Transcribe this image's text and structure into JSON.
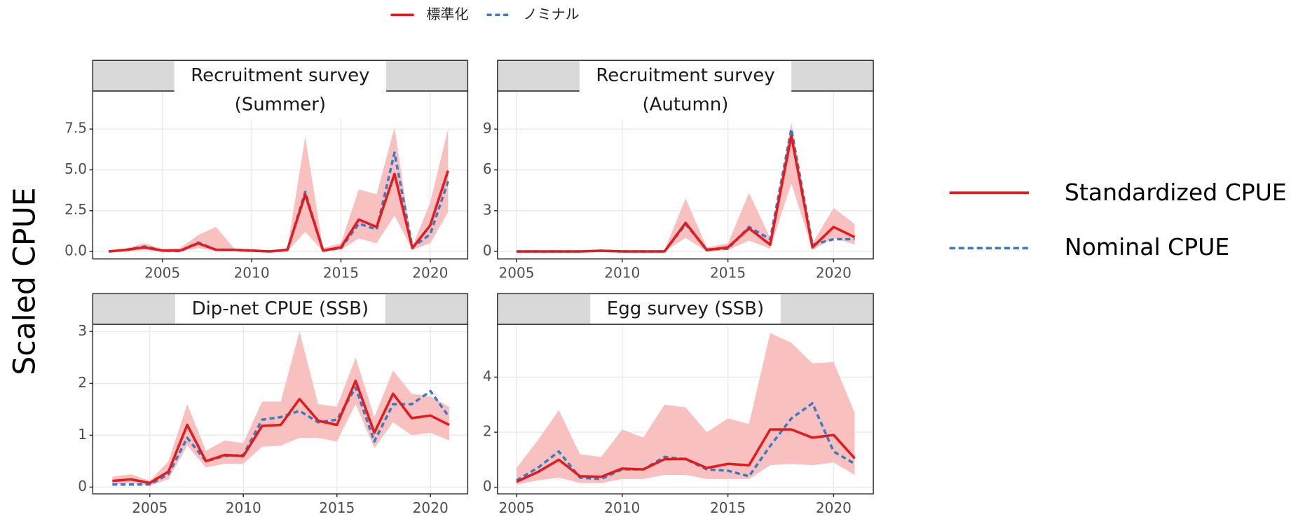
{
  "y_label": "Scaled CPUE",
  "right_legend": [
    "Standardized CPUE",
    "Nominal CPUE"
  ],
  "chart_data": [
    {
      "type": "line",
      "title": [
        "Recruitment survey",
        "(Summer)"
      ],
      "x": [
        2002,
        2003,
        2004,
        2005,
        2006,
        2007,
        2008,
        2009,
        2010,
        2011,
        2012,
        2013,
        2014,
        2015,
        2016,
        2017,
        2018,
        2019,
        2020,
        2021
      ],
      "series": [
        {
          "name": "標準化",
          "color": "#e41a1c",
          "dash": false,
          "values": [
            0,
            0.1,
            0.25,
            0.05,
            0.05,
            0.5,
            0.1,
            0.1,
            0.05,
            0,
            0.1,
            3.5,
            0.05,
            0.25,
            1.95,
            1.5,
            4.75,
            0.2,
            1.6,
            4.95
          ]
        },
        {
          "name": "ノミナル",
          "color": "#3c7bc4",
          "dash": true,
          "values": [
            0,
            0.1,
            0.3,
            0.05,
            0.02,
            0.55,
            0.1,
            0.1,
            0.05,
            0,
            0.08,
            3.65,
            0.05,
            0.2,
            1.7,
            1.35,
            6.05,
            0.25,
            1.05,
            4.3
          ]
        }
      ],
      "band": {
        "color": "#f9c0c0",
        "lower": [
          0,
          0,
          0.1,
          0,
          0,
          0.2,
          0.05,
          0.05,
          0,
          0,
          0,
          1.2,
          0,
          0.1,
          0.8,
          0.5,
          2.2,
          0.1,
          0.5,
          2.4
        ],
        "upper": [
          0.05,
          0.2,
          0.5,
          0.15,
          0.2,
          1.0,
          1.5,
          0.2,
          0.1,
          0.05,
          0.2,
          7.0,
          0.2,
          0.5,
          3.8,
          3.5,
          7.6,
          0.3,
          3.0,
          7.5
        ]
      },
      "xlim": [
        2001.1,
        2022.1
      ],
      "xticks": [
        2005,
        2010,
        2015,
        2020
      ],
      "ylim": [
        -0.46,
        9.83
      ],
      "yticks": [
        {
          "value": 0,
          "label": "0.0"
        },
        2.5,
        {
          "value": 5,
          "label": "5.0"
        },
        7.5
      ],
      "grid": true
    },
    {
      "type": "line",
      "title": [
        "Recruitment survey",
        "(Autumn)"
      ],
      "x": [
        2005,
        2006,
        2007,
        2008,
        2009,
        2010,
        2011,
        2012,
        2013,
        2014,
        2015,
        2016,
        2017,
        2018,
        2019,
        2020,
        2021
      ],
      "series": [
        {
          "name": "標準化",
          "color": "#e41a1c",
          "dash": false,
          "values": [
            0,
            0,
            0,
            0,
            0.05,
            0,
            0,
            0,
            2.1,
            0.1,
            0.3,
            1.7,
            0.5,
            8.5,
            0.3,
            1.8,
            1.05
          ]
        },
        {
          "name": "ノミナル",
          "color": "#3c7bc4",
          "dash": true,
          "values": [
            0,
            0,
            0,
            0,
            0.05,
            0,
            0,
            0,
            2.0,
            0.15,
            0.2,
            1.8,
            0.9,
            9.0,
            0.5,
            0.9,
            0.9
          ]
        }
      ],
      "band": {
        "color": "#f9c0c0",
        "lower": [
          0,
          0,
          0,
          0,
          0,
          0,
          0,
          0,
          1.0,
          0,
          0.1,
          0.8,
          0.2,
          5.0,
          0.1,
          1.0,
          0.5
        ],
        "upper": [
          0.05,
          0.05,
          0.05,
          0.05,
          0.1,
          0.05,
          0.05,
          0.1,
          3.9,
          0.3,
          0.6,
          4.3,
          1.0,
          9.5,
          0.6,
          3.2,
          2.0
        ]
      },
      "xlim": [
        2004.1,
        2021.88
      ],
      "xticks": [
        2005,
        2010,
        2015,
        2020
      ],
      "ylim": [
        -0.55,
        11.8
      ],
      "yticks": [
        0,
        3,
        6,
        9
      ],
      "grid": true
    },
    {
      "type": "line",
      "title": [
        "Dip-net CPUE (SSB)"
      ],
      "x": [
        2003,
        2004,
        2005,
        2006,
        2007,
        2008,
        2009,
        2010,
        2011,
        2012,
        2013,
        2014,
        2015,
        2016,
        2017,
        2018,
        2019,
        2020,
        2021
      ],
      "series": [
        {
          "name": "標準化",
          "color": "#e41a1c",
          "dash": false,
          "values": [
            0.12,
            0.15,
            0.08,
            0.3,
            1.2,
            0.5,
            0.62,
            0.6,
            1.18,
            1.2,
            1.7,
            1.28,
            1.2,
            2.05,
            1.05,
            1.8,
            1.33,
            1.38,
            1.2
          ]
        },
        {
          "name": "ノミナル",
          "color": "#3c7bc4",
          "dash": true,
          "values": [
            0.05,
            0.05,
            0.05,
            0.25,
            0.95,
            0.5,
            0.6,
            0.62,
            1.3,
            1.35,
            1.47,
            1.25,
            1.3,
            1.92,
            0.88,
            1.6,
            1.6,
            1.85,
            1.35
          ]
        }
      ],
      "band": {
        "color": "#f9c0c0",
        "lower": [
          0.05,
          0.08,
          0.03,
          0.15,
          0.8,
          0.38,
          0.45,
          0.45,
          0.78,
          0.8,
          0.95,
          0.95,
          0.88,
          1.6,
          0.75,
          1.25,
          1.0,
          1.05,
          0.9
        ],
        "upper": [
          0.2,
          0.25,
          0.12,
          0.5,
          1.6,
          0.7,
          0.9,
          0.85,
          1.65,
          1.65,
          3.0,
          1.6,
          1.55,
          2.5,
          1.35,
          2.25,
          1.8,
          1.75,
          1.55
        ]
      },
      "xlim": [
        2001.95,
        2021.99
      ],
      "xticks": [
        2005,
        2010,
        2015,
        2020
      ],
      "ylim": [
        -0.13,
        3.14
      ],
      "yticks": [
        0,
        1,
        2,
        3
      ],
      "grid": true
    },
    {
      "type": "line",
      "title": [
        "Egg survey (SSB)"
      ],
      "x": [
        2005,
        2006,
        2007,
        2008,
        2009,
        2010,
        2011,
        2012,
        2013,
        2014,
        2015,
        2016,
        2017,
        2018,
        2019,
        2020,
        2021
      ],
      "series": [
        {
          "name": "標準化",
          "color": "#e41a1c",
          "dash": false,
          "values": [
            0.2,
            0.55,
            1.0,
            0.4,
            0.38,
            0.68,
            0.65,
            1.02,
            1.03,
            0.7,
            0.85,
            0.8,
            2.1,
            2.1,
            1.8,
            1.9,
            1.05
          ]
        },
        {
          "name": "ノミナル",
          "color": "#3c7bc4",
          "dash": true,
          "values": [
            0.25,
            0.7,
            1.3,
            0.35,
            0.3,
            0.65,
            0.65,
            1.1,
            1.02,
            0.65,
            0.6,
            0.4,
            1.5,
            2.5,
            3.05,
            1.3,
            0.85
          ]
        }
      ],
      "band": {
        "color": "#f9c0c0",
        "lower": [
          0.1,
          0.25,
          0.35,
          0.15,
          0.15,
          0.3,
          0.3,
          0.45,
          0.45,
          0.3,
          0.3,
          0.3,
          0.8,
          0.85,
          0.8,
          0.9,
          0.45
        ],
        "upper": [
          0.7,
          1.7,
          2.8,
          1.2,
          1.1,
          2.1,
          1.8,
          3.0,
          2.9,
          2.0,
          2.5,
          2.3,
          5.6,
          5.25,
          4.5,
          4.55,
          2.7
        ]
      },
      "xlim": [
        2004.1,
        2021.88
      ],
      "xticks": [
        2005,
        2010,
        2015,
        2020
      ],
      "ylim": [
        -0.24,
        5.92
      ],
      "yticks": [
        0,
        2,
        4
      ],
      "grid": true
    }
  ]
}
